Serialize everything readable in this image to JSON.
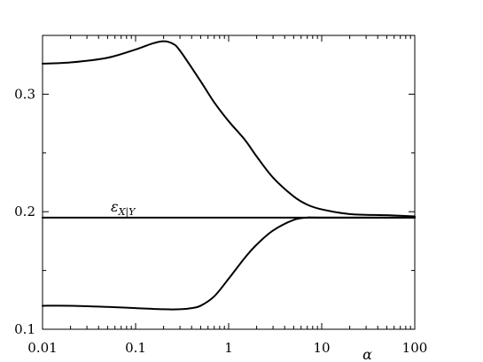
{
  "chart_data": {
    "type": "line",
    "xscale": "log",
    "xlim": [
      0.01,
      100
    ],
    "ylim": [
      0.1,
      0.35
    ],
    "xlabel": "α",
    "ylabel": "",
    "title": "",
    "grid": false,
    "xticks": [
      {
        "value": 0.01,
        "label": "0.01"
      },
      {
        "value": 0.1,
        "label": "0.1"
      },
      {
        "value": 1,
        "label": "1"
      },
      {
        "value": 10,
        "label": "10"
      },
      {
        "value": 100,
        "label": "100"
      }
    ],
    "yticks": [
      {
        "value": 0.1,
        "label": "0.1"
      },
      {
        "value": 0.2,
        "label": "0.2"
      },
      {
        "value": 0.3,
        "label": "0.3"
      }
    ],
    "annotation": {
      "text": "ε",
      "subscript": "X|Y",
      "x": 0.1,
      "y": 0.195
    },
    "series": [
      {
        "x": [
          0.01,
          0.02,
          0.05,
          0.1,
          0.15,
          0.2,
          0.25,
          0.3,
          0.5,
          0.7,
          1,
          1.5,
          2,
          3,
          5,
          7,
          10,
          20,
          50,
          100
        ],
        "y": [
          0.326,
          0.327,
          0.331,
          0.338,
          0.343,
          0.345,
          0.343,
          0.337,
          0.311,
          0.293,
          0.277,
          0.261,
          0.247,
          0.229,
          0.213,
          0.206,
          0.202,
          0.198,
          0.197,
          0.196
        ]
      },
      {
        "x": [
          0.01,
          100
        ],
        "y": [
          0.195,
          0.195
        ]
      },
      {
        "x": [
          0.01,
          0.02,
          0.05,
          0.1,
          0.2,
          0.3,
          0.4,
          0.5,
          0.7,
          1,
          1.5,
          2,
          3,
          5,
          7,
          10,
          100
        ],
        "y": [
          0.12,
          0.12,
          0.119,
          0.118,
          0.117,
          0.117,
          0.118,
          0.12,
          0.128,
          0.143,
          0.161,
          0.172,
          0.184,
          0.193,
          0.195,
          0.195,
          0.195
        ]
      }
    ]
  }
}
